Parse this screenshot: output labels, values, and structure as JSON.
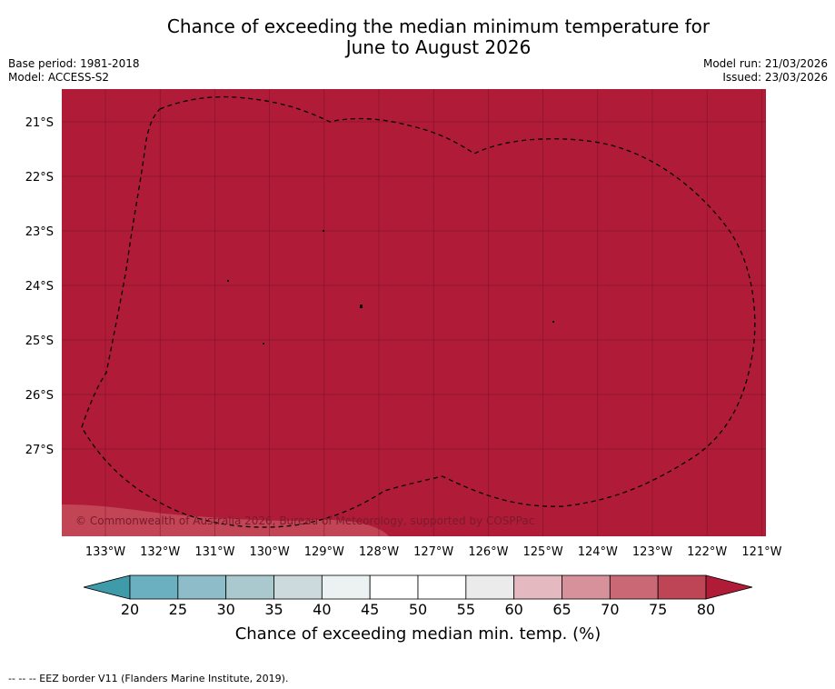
{
  "title_line1": "Chance of exceeding the median minimum temperature for",
  "title_line2": "June to August 2026",
  "base_period": "Base period: 1981-2018",
  "model": "Model: ACCESS-S2",
  "model_run": "Model run: 21/03/2026",
  "issued": "Issued: 23/03/2026",
  "copyright": "© Commonwealth of Australia 2026, Bureau of Meteorology, supported by COSPPac",
  "footnote": "--  --  -- EEZ border V11 (Flanders Marine Institute, 2019).",
  "lat_labels": [
    "21°S",
    "22°S",
    "23°S",
    "24°S",
    "25°S",
    "26°S",
    "27°S"
  ],
  "lon_labels": [
    "133°W",
    "132°W",
    "131°W",
    "130°W",
    "129°W",
    "128°W",
    "127°W",
    "126°W",
    "125°W",
    "124°W",
    "123°W",
    "122°W",
    "121°W"
  ],
  "colorbar": {
    "title": "Chance of exceeding median min. temp. (%)",
    "ticks": [
      "20",
      "25",
      "30",
      "35",
      "40",
      "45",
      "50",
      "55",
      "60",
      "65",
      "70",
      "75",
      "80"
    ],
    "under_color": "#3f9aaa",
    "over_color": "#b01c38",
    "bin_colors": [
      "#6ab0c0",
      "#8ebcc8",
      "#aac9ce",
      "#cddadd",
      "#ecf1f2",
      "#ffffff",
      "#ffffff",
      "#ebebeb",
      "#e4b9bf",
      "#d7919a",
      "#ca6876",
      "#bd4555"
    ]
  },
  "map": {
    "fill_color": "#b01c38",
    "predominant_category": "80+"
  }
}
